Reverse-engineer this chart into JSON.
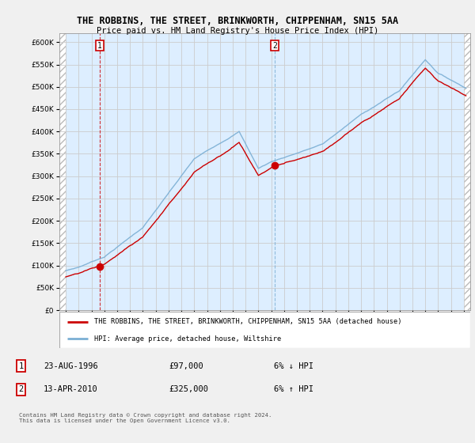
{
  "title": "THE ROBBINS, THE STREET, BRINKWORTH, CHIPPENHAM, SN15 5AA",
  "subtitle": "Price paid vs. HM Land Registry's House Price Index (HPI)",
  "legend_line1": "THE ROBBINS, THE STREET, BRINKWORTH, CHIPPENHAM, SN15 5AA (detached house)",
  "legend_line2": "HPI: Average price, detached house, Wiltshire",
  "footer": "Contains HM Land Registry data © Crown copyright and database right 2024.\nThis data is licensed under the Open Government Licence v3.0.",
  "sale1_label": "1",
  "sale1_date": "23-AUG-1996",
  "sale1_price": "£97,000",
  "sale1_hpi": "6% ↓ HPI",
  "sale2_label": "2",
  "sale2_date": "13-APR-2010",
  "sale2_price": "£325,000",
  "sale2_hpi": "6% ↑ HPI",
  "sale1_year": 1996.64,
  "sale1_value": 97000,
  "sale2_year": 2010.28,
  "sale2_value": 325000,
  "ylim": [
    0,
    620000
  ],
  "xlim_start": 1993.5,
  "xlim_end": 2025.5,
  "red_color": "#cc0000",
  "blue_color": "#7bafd4",
  "plot_bg_color": "#ddeeff",
  "hatch_bg_color": "#e8e8e8",
  "background_color": "#f0f0f0",
  "grid_color": "#cccccc",
  "vline_red": "#cc0000",
  "vline_blue": "#7bafd4"
}
